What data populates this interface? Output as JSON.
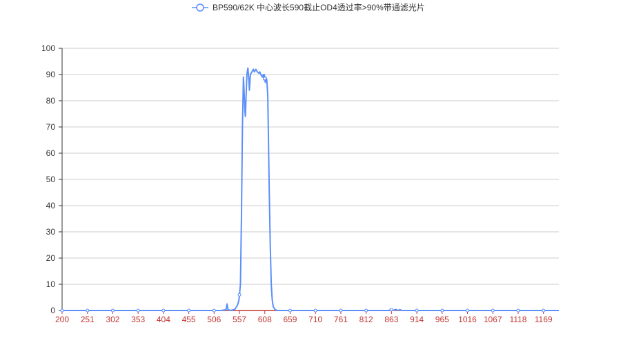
{
  "chart_data": {
    "type": "line",
    "series": [
      {
        "name": "BP590/62K 中心波长590截止OD4透过率>90%带通滤光片",
        "color": "#5b8ff9",
        "points": [
          [
            200,
            0
          ],
          [
            500,
            0
          ],
          [
            520,
            0
          ],
          [
            530,
            0.3
          ],
          [
            532,
            2.5
          ],
          [
            534,
            0.3
          ],
          [
            540,
            0
          ],
          [
            548,
            0.5
          ],
          [
            553,
            2
          ],
          [
            556,
            4
          ],
          [
            559,
            10
          ],
          [
            561,
            35
          ],
          [
            563,
            70
          ],
          [
            565,
            89
          ],
          [
            566,
            85
          ],
          [
            568,
            76
          ],
          [
            569,
            74
          ],
          [
            570,
            80
          ],
          [
            572,
            90
          ],
          [
            574,
            92.5
          ],
          [
            576,
            88
          ],
          [
            577,
            84
          ],
          [
            579,
            90
          ],
          [
            582,
            91
          ],
          [
            585,
            92
          ],
          [
            587,
            91
          ],
          [
            590,
            92
          ],
          [
            593,
            91
          ],
          [
            596,
            90.5
          ],
          [
            598,
            91
          ],
          [
            600,
            90
          ],
          [
            603,
            89
          ],
          [
            605,
            90
          ],
          [
            606,
            88
          ],
          [
            607,
            90
          ],
          [
            608,
            88.5
          ],
          [
            609,
            87
          ],
          [
            610,
            89
          ],
          [
            612,
            88
          ],
          [
            614,
            82
          ],
          [
            615,
            70
          ],
          [
            617,
            45
          ],
          [
            619,
            25
          ],
          [
            621,
            10
          ],
          [
            623,
            4
          ],
          [
            625,
            1.5
          ],
          [
            628,
            0.5
          ],
          [
            632,
            0
          ],
          [
            700,
            0
          ],
          [
            858,
            0
          ],
          [
            862,
            0.5
          ],
          [
            866,
            0
          ],
          [
            872,
            0.4
          ],
          [
            876,
            0
          ],
          [
            880,
            0.3
          ],
          [
            884,
            0
          ],
          [
            1000,
            0
          ],
          [
            1200,
            0
          ]
        ],
        "markers": [
          200,
          251,
          302,
          353,
          404,
          455,
          506,
          557,
          608,
          659,
          710,
          761,
          812,
          863,
          914,
          965,
          1016,
          1067,
          1118,
          1169
        ]
      }
    ],
    "x_ticks": [
      200,
      251,
      302,
      353,
      404,
      455,
      506,
      557,
      608,
      659,
      710,
      761,
      812,
      863,
      914,
      965,
      1016,
      1067,
      1118,
      1169
    ],
    "y_ticks": [
      0,
      10,
      20,
      30,
      40,
      50,
      60,
      70,
      80,
      90,
      100
    ],
    "xlim": [
      200,
      1200
    ],
    "ylim": [
      0,
      100
    ],
    "grid": "horizontal",
    "legend_position": "top-center"
  }
}
